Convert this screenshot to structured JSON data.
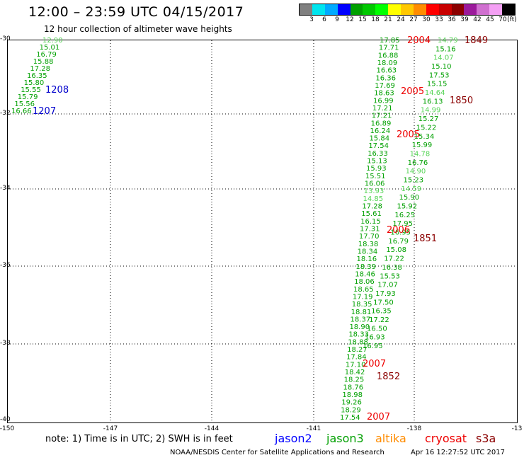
{
  "header": {
    "title": "12:00 – 23:59 UTC 04/15/2017",
    "subtitle": "12 hour collection of altimeter wave heights"
  },
  "color_scale": {
    "colors": [
      "#808080",
      "#00e5ee",
      "#00aaff",
      "#0000ff",
      "#00a000",
      "#00c800",
      "#00ff00",
      "#ffff00",
      "#ffc800",
      "#ff8c00",
      "#ff0000",
      "#c80000",
      "#8b0000",
      "#9b1a9b",
      "#d070d0",
      "#f4a0f4",
      "#000000"
    ],
    "labels": [
      "3",
      "6",
      "9",
      "12",
      "15",
      "18",
      "21",
      "24",
      "27",
      "30",
      "33",
      "36",
      "39",
      "42",
      "45",
      "70",
      "(ft)"
    ]
  },
  "map": {
    "lat_ticks": [
      "-30",
      "-32",
      "-34",
      "-36",
      "-38",
      "-40"
    ],
    "lon_ticks": [
      "-150",
      "-147",
      "-144",
      "-141",
      "-138",
      "-13"
    ],
    "west_track": {
      "color": "#00a000",
      "values": [
        "12.90",
        "15.01",
        "16.79",
        "15.88",
        "17.28",
        "16.35",
        "15.80",
        "15.55",
        "15.79",
        "15.56",
        "16.66"
      ]
    },
    "west_labels": [
      {
        "text": "1208",
        "color": "#0000cc"
      },
      {
        "text": "1207",
        "color": "#0000cc"
      }
    ],
    "main_track": {
      "color": "#00a000",
      "values": [
        "17.85",
        "17.71",
        "16.88",
        "18.09",
        "16.63",
        "16.36",
        "17.69",
        "18.63",
        "16.99",
        "17.21",
        "17.21",
        "16.89",
        "16.24",
        "15.84",
        "17.54",
        "16.33",
        "15.13",
        "15.93",
        "15.51",
        "16.06",
        "13.93",
        "14.85",
        "17.28",
        "15.61",
        "16.15",
        "17.31",
        "17.70",
        "18.38",
        "18.34",
        "18.16",
        "18.39",
        "18.46",
        "18.06",
        "18.65",
        "17.19",
        "18.35",
        "18.81",
        "18.37",
        "18.90",
        "18.33",
        "18.88",
        "18.27",
        "17.84",
        "17.10",
        "18.42",
        "18.25",
        "18.76",
        "18.98",
        "19.26",
        "18.29",
        "17.54"
      ]
    },
    "right_track": {
      "color": "#00a000",
      "values": [
        "14.79",
        "15.16",
        "14.07",
        "15.10",
        "17.53",
        "15.15",
        "14.64",
        "16.13",
        "14.99",
        "15.27",
        "15.22",
        "15.34",
        "15.99",
        "14.78",
        "16.76",
        "14.90",
        "15.23",
        "14.59",
        "15.90",
        "15.92",
        "16.25",
        "17.95",
        "16.95",
        "16.79",
        "15.08",
        "17.22",
        "16.38",
        "15.53",
        "17.07",
        "17.93",
        "17.50",
        "16.35",
        "17.22",
        "16.50",
        "16.93",
        "16.95"
      ]
    },
    "pass_labels": [
      {
        "text": "2004",
        "color": "#ee0000"
      },
      {
        "text": "1849",
        "color": "#8b0000"
      },
      {
        "text": "2005",
        "color": "#ee0000"
      },
      {
        "text": "1850",
        "color": "#8b0000"
      },
      {
        "text": "2005",
        "color": "#ee0000"
      },
      {
        "text": "2006",
        "color": "#ee0000"
      },
      {
        "text": "1851",
        "color": "#8b0000"
      },
      {
        "text": "2007",
        "color": "#ee0000"
      },
      {
        "text": "1852",
        "color": "#8b0000"
      },
      {
        "text": "2007",
        "color": "#ee0000"
      }
    ]
  },
  "footer": {
    "note": "note: 1) Time is in UTC; 2) SWH is in feet",
    "satellites": [
      {
        "name": "jason2",
        "color": "#0000ff"
      },
      {
        "name": "jason3",
        "color": "#00a000"
      },
      {
        "name": "altika",
        "color": "#ff8c00"
      },
      {
        "name": "cryosat",
        "color": "#ee0000"
      },
      {
        "name": "s3a",
        "color": "#8b0000"
      }
    ],
    "credit": "NOAA/NESDIS Center for Satellite Applications and Research",
    "timestamp": "Apr 16 12:27:52 UTC 2017"
  }
}
